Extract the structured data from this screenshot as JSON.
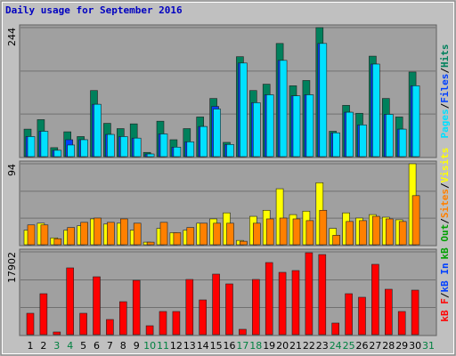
{
  "title": "Daily usage for September 2016",
  "legend_separator": "/",
  "categories": [
    "1",
    "2",
    "3",
    "4",
    "5",
    "6",
    "7",
    "8",
    "9",
    "10",
    "11",
    "12",
    "13",
    "14",
    "15",
    "16",
    "17",
    "18",
    "19",
    "20",
    "21",
    "22",
    "23",
    "24",
    "25",
    "26",
    "27",
    "28",
    "29",
    "30",
    "31"
  ],
  "category_colors": [
    "#000000",
    "#000000",
    "#008040",
    "#008040",
    "#000000",
    "#000000",
    "#000000",
    "#000000",
    "#000000",
    "#008040",
    "#008040",
    "#000000",
    "#000000",
    "#000000",
    "#000000",
    "#000000",
    "#008040",
    "#008040",
    "#000000",
    "#000000",
    "#000000",
    "#000000",
    "#000000",
    "#008040",
    "#008040",
    "#000000",
    "#000000",
    "#000000",
    "#000000",
    "#000000",
    "#008040"
  ],
  "chart_data": [
    {
      "type": "bar",
      "ylim": [
        0,
        244
      ],
      "yticks": [
        244
      ],
      "grid": true,
      "extra_labels": [],
      "series": [
        {
          "name": "Hits",
          "color": "#00805c",
          "values": [
            52,
            70,
            17,
            47,
            38,
            125,
            63,
            53,
            62,
            8,
            67,
            32,
            53,
            75,
            110,
            27,
            189,
            125,
            137,
            214,
            134,
            144,
            244,
            48,
            97,
            82,
            190,
            110,
            75,
            160,
            0
          ]
        },
        {
          "name": "Files",
          "color": "#0040ff",
          "values": [
            38,
            48,
            12,
            32,
            32,
            99,
            42,
            38,
            35,
            5,
            43,
            18,
            28,
            57,
            95,
            23,
            177,
            102,
            117,
            182,
            115,
            117,
            214,
            45,
            84,
            60,
            175,
            80,
            52,
            134,
            0
          ]
        },
        {
          "name": "Pages",
          "color": "#00e0ff",
          "values": [
            38,
            48,
            12,
            22,
            32,
            99,
            42,
            38,
            35,
            5,
            43,
            18,
            28,
            57,
            90,
            23,
            177,
            102,
            117,
            182,
            115,
            117,
            214,
            45,
            84,
            60,
            175,
            80,
            52,
            134,
            0
          ]
        }
      ]
    },
    {
      "type": "bar",
      "ylim": [
        0,
        94
      ],
      "yticks": [
        94
      ],
      "grid": true,
      "extra_labels": [
        {
          "text": "kB Out",
          "color": "#00a000"
        }
      ],
      "series": [
        {
          "name": "Visits",
          "color": "#ffff00",
          "values": [
            17,
            25,
            8,
            17,
            22,
            30,
            24,
            25,
            17,
            3,
            19,
            14,
            17,
            25,
            30,
            37,
            5,
            33,
            40,
            65,
            35,
            39,
            72,
            19,
            37,
            31,
            35,
            32,
            29,
            94,
            0
          ]
        },
        {
          "name": "Sites",
          "color": "#ff8000",
          "values": [
            23,
            23,
            7,
            20,
            26,
            31,
            26,
            30,
            25,
            3,
            26,
            14,
            20,
            25,
            25,
            25,
            4,
            25,
            30,
            31,
            30,
            28,
            40,
            11,
            27,
            28,
            33,
            30,
            27,
            57,
            0
          ]
        }
      ]
    },
    {
      "type": "bar",
      "ylim": [
        0,
        17902
      ],
      "yticks": [
        17902
      ],
      "grid": true,
      "extra_labels": [
        {
          "text": "kB F",
          "color": "#ff0000"
        }
      ],
      "series": [
        {
          "name": "kB In",
          "color": "#ff0000",
          "label_color": "#0040ff",
          "values": [
            4620,
            8855,
            578,
            14438,
            4620,
            12513,
            3273,
            7123,
            11743,
            1925,
            5005,
            5005,
            11935,
            7508,
            13090,
            10973,
            1155,
            11935,
            15593,
            13475,
            13860,
            17710,
            17325,
            2503,
            8855,
            8085,
            15208,
            9818,
            5005,
            9625,
            0
          ]
        }
      ]
    }
  ]
}
